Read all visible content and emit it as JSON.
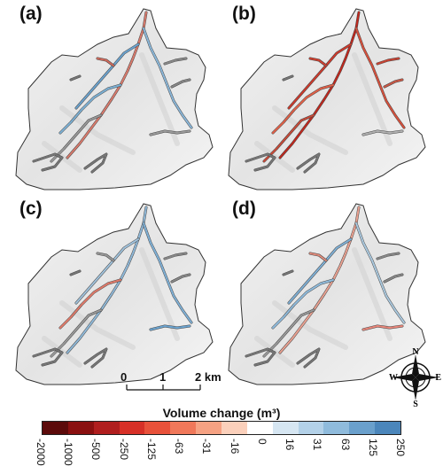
{
  "panels": [
    {
      "label": "(a)",
      "scenario": "a"
    },
    {
      "label": "(b)",
      "scenario": "b"
    },
    {
      "label": "(c)",
      "scenario": "c"
    },
    {
      "label": "(d)",
      "scenario": "d"
    }
  ],
  "scale_bar": {
    "ticks": [
      "0",
      "1",
      "2 km"
    ]
  },
  "compass": {
    "n": "N",
    "s": "S",
    "e": "E",
    "w": "W"
  },
  "legend": {
    "title": "Volume change (m³)",
    "ticks": [
      "-2000",
      "-1000",
      "-500",
      "-250",
      "-125",
      "-63",
      "-31",
      "-16",
      "0",
      "16",
      "31",
      "63",
      "125",
      "250"
    ],
    "colors": [
      "#5c0a0a",
      "#8a1010",
      "#b01e1e",
      "#d73027",
      "#e8513a",
      "#f0785a",
      "#f6a283",
      "#fbd0bb",
      "#ffffff",
      "#d6e6f2",
      "#b3d1e8",
      "#8fbbdc",
      "#6aa0cc",
      "#4b86bb"
    ]
  }
}
